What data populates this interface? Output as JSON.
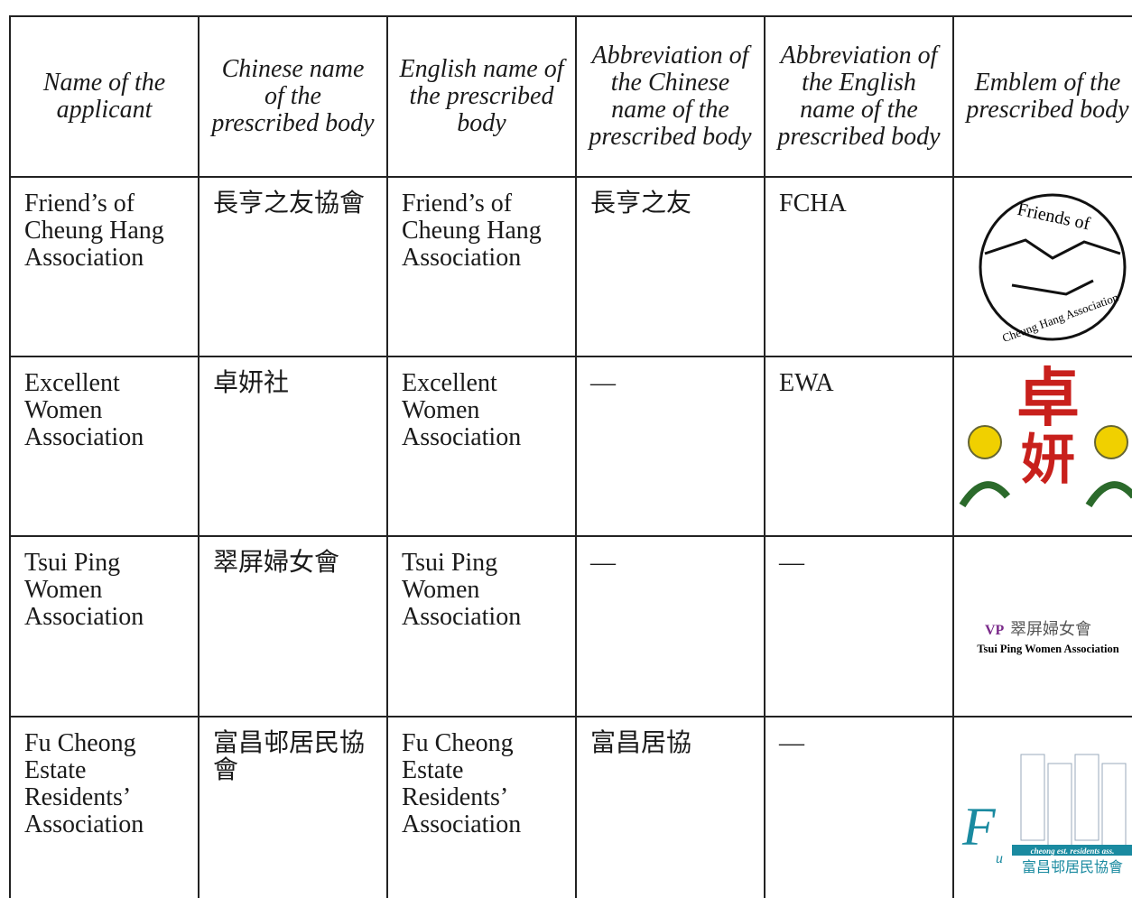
{
  "table": {
    "header": [
      "Name of the applicant",
      "Chinese name of the prescribed body",
      "English name of the prescribed body",
      "Abbreviation of the Chinese name of the prescribed body",
      "Abbreviation of the English name of the prescribed body",
      "Emblem of the prescribed body"
    ],
    "rows": [
      [
        "Friend’s of Cheung Hang Association",
        "長亨之友協會",
        "Friend’s of Cheung Hang Association",
        "長亨之友",
        "FCHA"
      ],
      [
        "Excellent Women Association",
        "卓妍社",
        "Excellent Women Association",
        "—",
        "EWA"
      ],
      [
        "Tsui Ping Women Association",
        "翠屏婦女會",
        "Tsui Ping Women Association",
        "—",
        "—"
      ],
      [
        "Fu Cheong Estate Residents’ Association",
        "富昌邨居民協會",
        "Fu Cheong Estate Residents’ Association",
        "富昌居協",
        "—"
      ]
    ],
    "emblems": [
      [
        "Friends of",
        "Cheung Hang Association"
      ],
      [
        "卓",
        "妍"
      ],
      [
        "VP",
        "翠屏婦女會",
        "Tsui Ping Women Association"
      ],
      [
        "F",
        "u",
        "cheong est. residents ass.",
        "富昌邨居民協會"
      ]
    ]
  }
}
